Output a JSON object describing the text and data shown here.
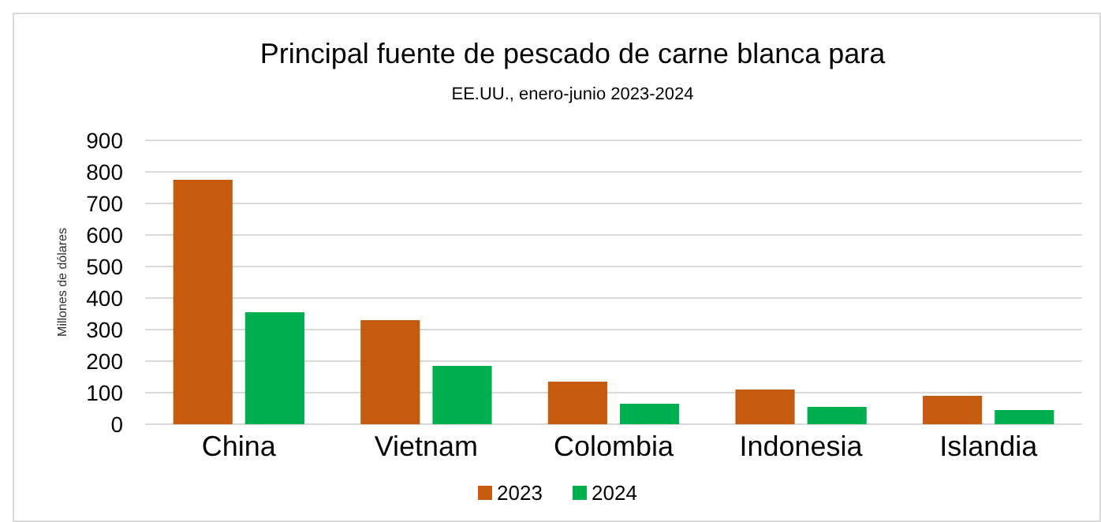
{
  "chart_data": {
    "type": "bar",
    "title": "Principal fuente de pescado de carne blanca para",
    "subtitle": "EE.UU., enero-junio 2023-2024",
    "ylabel": "Millones de dólares",
    "categories": [
      "China",
      "Vietnam",
      "Colombia",
      "Indonesia",
      "Islandia"
    ],
    "series": [
      {
        "name": "2023",
        "color": "#c55a11",
        "values": [
          775,
          330,
          135,
          110,
          90
        ]
      },
      {
        "name": "2024",
        "color": "#00b050",
        "values": [
          355,
          185,
          65,
          55,
          45
        ]
      }
    ],
    "ylim": [
      0,
      900
    ],
    "yticks": [
      0,
      100,
      200,
      300,
      400,
      500,
      600,
      700,
      800,
      900
    ],
    "grid": "y",
    "legend": "bottom"
  }
}
